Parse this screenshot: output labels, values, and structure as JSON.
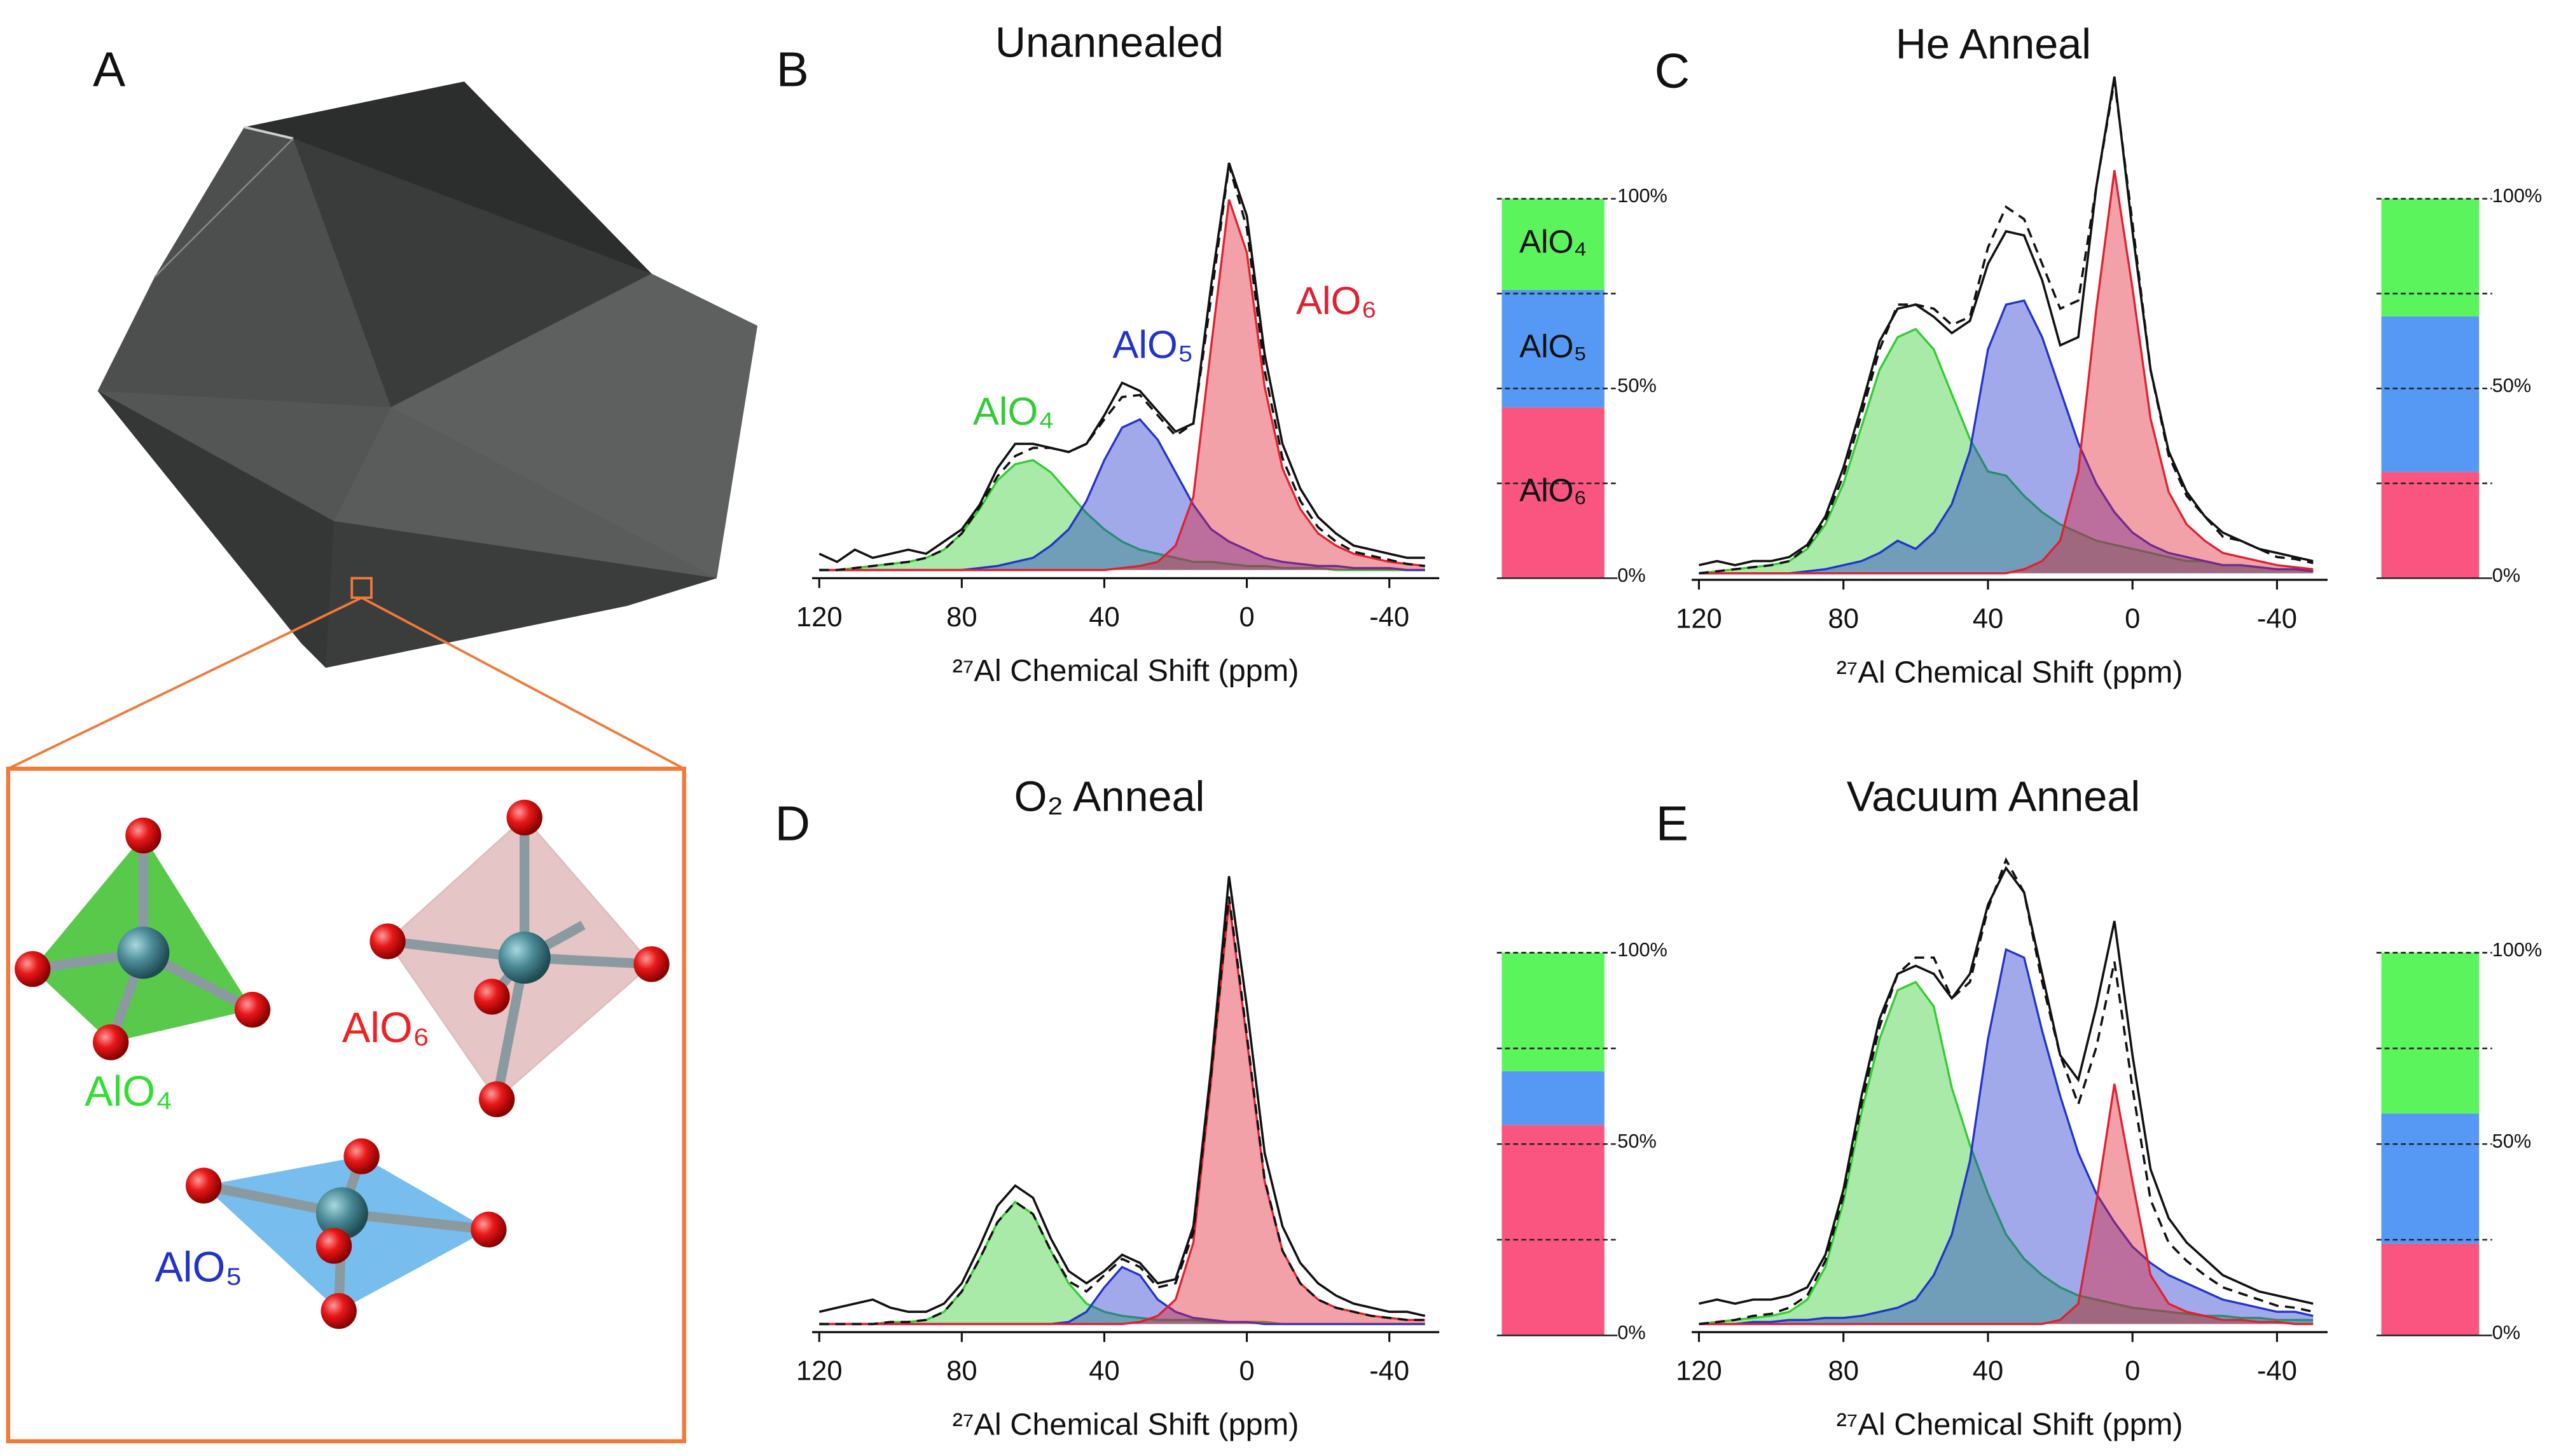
{
  "panel_a": {
    "label": "A",
    "labels": [
      "AlO₄",
      "AlO₆",
      "AlO₅"
    ]
  },
  "chart_data": [
    {
      "type": "line",
      "panel_label": "B",
      "title": "Unannealed",
      "x_label": "²⁷Al Chemical Shift (ppm)",
      "x": [
        120,
        115,
        110,
        105,
        100,
        95,
        90,
        85,
        80,
        75,
        70,
        65,
        60,
        55,
        50,
        45,
        40,
        35,
        30,
        25,
        20,
        15,
        10,
        5,
        0,
        -5,
        -10,
        -15,
        -20,
        -25,
        -30,
        -35,
        -40,
        -45,
        -50
      ],
      "xlim": [
        122,
        -54
      ],
      "xticks": [
        120,
        80,
        40,
        0,
        -40
      ],
      "ylim": [
        0,
        130
      ],
      "series": [
        {
          "color": "#111111",
          "line_style": "solid",
          "values": [
            4,
            2,
            5,
            3,
            4,
            5,
            4,
            7,
            10,
            16,
            25,
            31,
            31,
            30,
            29,
            31,
            38,
            46,
            44,
            39,
            34,
            36,
            70,
            100,
            87,
            53,
            31,
            20,
            13,
            9,
            6,
            5,
            4,
            3,
            3
          ]
        },
        {
          "color": "#111111",
          "line_style": "dashed",
          "values": [
            0,
            0,
            0.5,
            1,
            1.5,
            2,
            3,
            5,
            9,
            15.5,
            23,
            28,
            30,
            30,
            29,
            31,
            37,
            42.5,
            43,
            38,
            33,
            36,
            67,
            99.5,
            84,
            49,
            27.5,
            17,
            10.5,
            7,
            4.5,
            3.5,
            2.5,
            1.5,
            1
          ]
        },
        {
          "name": "AlO₄",
          "color": "#33cc33",
          "fill": true,
          "values": [
            0,
            0,
            0.5,
            1,
            1.5,
            2,
            3,
            5,
            9,
            15,
            22,
            26,
            27,
            24,
            19,
            14,
            10,
            7,
            5,
            4,
            3,
            2,
            2,
            1.5,
            1,
            1,
            0.5,
            0.5,
            0.5,
            0,
            0,
            0,
            0,
            0,
            0
          ]
        },
        {
          "name": "AlO₅",
          "color": "#2233cc",
          "fill": true,
          "values": [
            0,
            0,
            0,
            0,
            0,
            0,
            0,
            0,
            0,
            0.5,
            1,
            2,
            3,
            6,
            10,
            17,
            27,
            35,
            37,
            32,
            24,
            16,
            10,
            7,
            5,
            3,
            2,
            1.5,
            1,
            1,
            0.5,
            0.5,
            0.5,
            0,
            0
          ]
        },
        {
          "name": "AlO₆",
          "color": "#e02030",
          "fill": true,
          "values": [
            0,
            0,
            0,
            0,
            0,
            0,
            0,
            0,
            0,
            0,
            0,
            0,
            0,
            0,
            0,
            0,
            0,
            0.5,
            1,
            2,
            6,
            18,
            55,
            91,
            78,
            45,
            25,
            15,
            9,
            6,
            4,
            3,
            2,
            1.5,
            1
          ]
        }
      ]
    },
    {
      "type": "line",
      "panel_label": "C",
      "title": "He Anneal",
      "x_label": "²⁷Al Chemical Shift (ppm)",
      "x": [
        120,
        115,
        110,
        105,
        100,
        95,
        90,
        85,
        80,
        75,
        70,
        65,
        60,
        55,
        50,
        45,
        40,
        35,
        30,
        25,
        20,
        15,
        10,
        5,
        0,
        -5,
        -10,
        -15,
        -20,
        -25,
        -30,
        -35,
        -40,
        -45,
        -50
      ],
      "xlim": [
        122,
        -54
      ],
      "xticks": [
        120,
        80,
        40,
        0,
        -40
      ],
      "ylim": [
        0,
        130
      ],
      "series": [
        {
          "color": "#111111",
          "line_style": "solid",
          "values": [
            2,
            3,
            2,
            3,
            3,
            4,
            7,
            14,
            26,
            41,
            57,
            65,
            66,
            63,
            59,
            62,
            76,
            84,
            83,
            72,
            56,
            58,
            95,
            122,
            84,
            50,
            30,
            20,
            14,
            10,
            8,
            6,
            5,
            4,
            3
          ]
        },
        {
          "color": "#111111",
          "line_style": "dashed",
          "values": [
            0,
            0.5,
            1,
            1.5,
            2,
            3,
            6.5,
            13,
            24,
            39,
            55,
            66,
            66,
            65,
            61,
            63,
            80,
            90,
            87,
            76,
            65,
            67,
            95,
            121,
            86,
            50,
            29,
            19,
            14,
            9,
            8,
            6,
            4,
            3.5,
            2.5
          ]
        },
        {
          "color": "#33cc33",
          "fill": true,
          "values": [
            0,
            0.5,
            1,
            1.5,
            2,
            3,
            6,
            12,
            22,
            36,
            50,
            58,
            60,
            55,
            44,
            33,
            25,
            24,
            19,
            15,
            12,
            10,
            8,
            7,
            6,
            5,
            4,
            3,
            3,
            2,
            2,
            1.5,
            1,
            1,
            1
          ]
        },
        {
          "color": "#2233cc",
          "fill": true,
          "values": [
            0,
            0,
            0,
            0,
            0,
            0,
            0.5,
            1,
            2,
            3,
            5,
            8,
            6,
            10,
            17,
            30,
            55,
            66,
            67,
            58,
            45,
            32,
            22,
            15,
            10,
            7,
            5,
            4,
            3,
            2,
            2,
            1.5,
            1,
            1,
            0.5
          ]
        },
        {
          "color": "#e02030",
          "fill": true,
          "values": [
            0,
            0,
            0,
            0,
            0,
            0,
            0,
            0,
            0,
            0,
            0,
            0,
            0,
            0,
            0,
            0,
            0,
            0,
            1,
            3,
            8,
            25,
            65,
            99,
            70,
            38,
            20,
            12,
            8,
            5,
            4,
            3,
            2,
            1.5,
            1
          ]
        }
      ]
    },
    {
      "type": "line",
      "panel_label": "D",
      "title": "O₂ Anneal",
      "x_label": "²⁷Al Chemical Shift (ppm)",
      "x": [
        120,
        115,
        110,
        105,
        100,
        95,
        90,
        85,
        80,
        75,
        70,
        65,
        60,
        55,
        50,
        45,
        40,
        35,
        30,
        25,
        20,
        15,
        10,
        5,
        0,
        -5,
        -10,
        -15,
        -20,
        -25,
        -30,
        -35,
        -40,
        -45,
        -50
      ],
      "xlim": [
        122,
        -54
      ],
      "xticks": [
        120,
        80,
        40,
        0,
        -40
      ],
      "ylim": [
        0,
        130
      ],
      "series": [
        {
          "color": "#111111",
          "line_style": "solid",
          "values": [
            3,
            4,
            5,
            6,
            4,
            3,
            3,
            5,
            10,
            19,
            29,
            34,
            31,
            21,
            13,
            10,
            13,
            17,
            15,
            10,
            11,
            24,
            63,
            110,
            78,
            42,
            24,
            15,
            10,
            7,
            5,
            4,
            3,
            3,
            2
          ]
        },
        {
          "color": "#111111",
          "line_style": "dashed",
          "values": [
            0,
            0,
            0,
            0,
            0.5,
            0.5,
            1,
            3,
            8,
            16,
            25,
            30,
            27,
            18,
            10.5,
            8,
            12,
            16,
            14,
            9,
            10,
            22.5,
            61.5,
            105,
            71,
            35.5,
            18,
            10,
            6,
            4,
            3,
            2,
            1.5,
            1,
            1
          ]
        },
        {
          "color": "#33cc33",
          "fill": true,
          "values": [
            0,
            0,
            0,
            0,
            0.5,
            0.5,
            1,
            3,
            8,
            16,
            25,
            30,
            27,
            18,
            10,
            5,
            3,
            2,
            1.5,
            1,
            1,
            1,
            0.5,
            0.5,
            0.5,
            0.5,
            0,
            0,
            0,
            0,
            0,
            0,
            0,
            0,
            0
          ]
        },
        {
          "color": "#2233cc",
          "fill": true,
          "values": [
            0,
            0,
            0,
            0,
            0,
            0,
            0,
            0,
            0,
            0,
            0,
            0,
            0,
            0,
            0.5,
            3,
            9,
            14,
            12,
            6,
            3,
            1.5,
            1,
            0.5,
            0.5,
            0,
            0,
            0,
            0,
            0,
            0,
            0,
            0,
            0,
            0
          ]
        },
        {
          "color": "#e02030",
          "fill": true,
          "values": [
            0,
            0,
            0,
            0,
            0,
            0,
            0,
            0,
            0,
            0,
            0,
            0,
            0,
            0,
            0,
            0,
            0,
            0,
            0.5,
            2,
            6,
            20,
            60,
            104,
            70,
            35,
            18,
            10,
            6,
            4,
            3,
            2,
            1.5,
            1,
            1
          ]
        }
      ]
    },
    {
      "type": "line",
      "panel_label": "E",
      "title": "Vacuum Anneal",
      "x_label": "²⁷Al Chemical Shift (ppm)",
      "x": [
        120,
        115,
        110,
        105,
        100,
        95,
        90,
        85,
        80,
        75,
        70,
        65,
        60,
        55,
        50,
        45,
        40,
        35,
        30,
        25,
        20,
        15,
        10,
        5,
        0,
        -5,
        -10,
        -15,
        -20,
        -25,
        -30,
        -35,
        -40,
        -45,
        -50
      ],
      "xlim": [
        122,
        -54
      ],
      "xticks": [
        120,
        80,
        40,
        0,
        -40
      ],
      "ylim": [
        0,
        130
      ],
      "series": [
        {
          "color": "#111111",
          "line_style": "solid",
          "values": [
            5,
            6,
            5,
            6,
            6,
            7,
            9,
            17,
            33,
            56,
            75,
            86,
            88,
            86,
            80,
            86,
            103,
            112,
            106,
            86,
            66,
            60,
            78,
            99,
            66,
            38,
            26,
            20,
            16,
            12,
            10,
            8,
            7,
            6,
            5
          ]
        },
        {
          "color": "#111111",
          "line_style": "dashed",
          "values": [
            0,
            0.5,
            1,
            2,
            2.5,
            4,
            7,
            15.5,
            31.5,
            54,
            73,
            86,
            90,
            90,
            80,
            84,
            102,
            114,
            106,
            84,
            66,
            54,
            68,
            89,
            58,
            30.5,
            20,
            15.5,
            12,
            9,
            7.5,
            6,
            4.5,
            4,
            3
          ]
        },
        {
          "color": "#33cc33",
          "fill": true,
          "values": [
            0,
            0.5,
            1,
            1.5,
            2,
            3,
            6,
            14,
            30,
            52,
            70,
            82,
            84,
            78,
            58,
            44,
            32,
            22,
            16,
            12,
            9,
            7,
            6,
            5,
            4,
            3.5,
            3,
            2.5,
            2,
            2,
            1.5,
            1.5,
            1,
            1,
            1
          ]
        },
        {
          "color": "#2233cc",
          "fill": true,
          "values": [
            0,
            0,
            0,
            0.5,
            0.5,
            1,
            1,
            1.5,
            1.5,
            2,
            3,
            4,
            6,
            12,
            22,
            40,
            70,
            92,
            90,
            72,
            56,
            42,
            32,
            25,
            19,
            15,
            12,
            10,
            8,
            6,
            5,
            4,
            3,
            3,
            2
          ]
        },
        {
          "color": "#e02030",
          "fill": true,
          "values": [
            0,
            0,
            0,
            0,
            0,
            0,
            0,
            0,
            0,
            0,
            0,
            0,
            0,
            0,
            0,
            0,
            0,
            0,
            0,
            0,
            1,
            5,
            30,
            59,
            35,
            12,
            5,
            3,
            2,
            1,
            1,
            0.5,
            0.5,
            0,
            0
          ]
        }
      ]
    },
    {
      "type": "bar",
      "stacked": true,
      "ylim": [
        0,
        100
      ],
      "yticks": [
        {
          "value": 0,
          "label": "0%"
        },
        {
          "value": 50,
          "label": "50%"
        },
        {
          "value": 100,
          "label": "100%"
        }
      ],
      "minor_yticks": [
        25,
        75
      ],
      "series": [
        {
          "name": "AlO₆",
          "color": "#fa5580",
          "values": [
            45
          ]
        },
        {
          "name": "AlO₅",
          "color": "#5599f5",
          "values": [
            31
          ]
        },
        {
          "name": "AlO₄",
          "color": "#5cf45c",
          "values": [
            24
          ]
        }
      ]
    },
    {
      "type": "bar",
      "stacked": true,
      "ylim": [
        0,
        100
      ],
      "yticks": [
        {
          "value": 0,
          "label": "0%"
        },
        {
          "value": 50,
          "label": "50%"
        },
        {
          "value": 100,
          "label": "100%"
        }
      ],
      "minor_yticks": [
        25,
        75
      ],
      "series": [
        {
          "color": "#fa5580",
          "values": [
            28
          ]
        },
        {
          "color": "#5599f5",
          "values": [
            41
          ]
        },
        {
          "color": "#5cf45c",
          "values": [
            31
          ]
        }
      ]
    },
    {
      "type": "bar",
      "stacked": true,
      "ylim": [
        0,
        100
      ],
      "yticks": [
        {
          "value": 0,
          "label": "0%"
        },
        {
          "value": 50,
          "label": "50%"
        },
        {
          "value": 100,
          "label": "100%"
        }
      ],
      "minor_yticks": [
        25,
        75
      ],
      "series": [
        {
          "color": "#fa5580",
          "values": [
            55
          ]
        },
        {
          "color": "#5599f5",
          "values": [
            14
          ]
        },
        {
          "color": "#5cf45c",
          "values": [
            31
          ]
        }
      ]
    },
    {
      "type": "bar",
      "stacked": true,
      "ylim": [
        0,
        100
      ],
      "yticks": [
        {
          "value": 0,
          "label": "0%"
        },
        {
          "value": 50,
          "label": "50%"
        },
        {
          "value": 100,
          "label": "100%"
        }
      ],
      "minor_yticks": [
        25,
        75
      ],
      "series": [
        {
          "color": "#fa5580",
          "values": [
            24
          ]
        },
        {
          "color": "#5599f5",
          "values": [
            34
          ]
        },
        {
          "color": "#5cf45c",
          "values": [
            42
          ]
        }
      ]
    }
  ]
}
